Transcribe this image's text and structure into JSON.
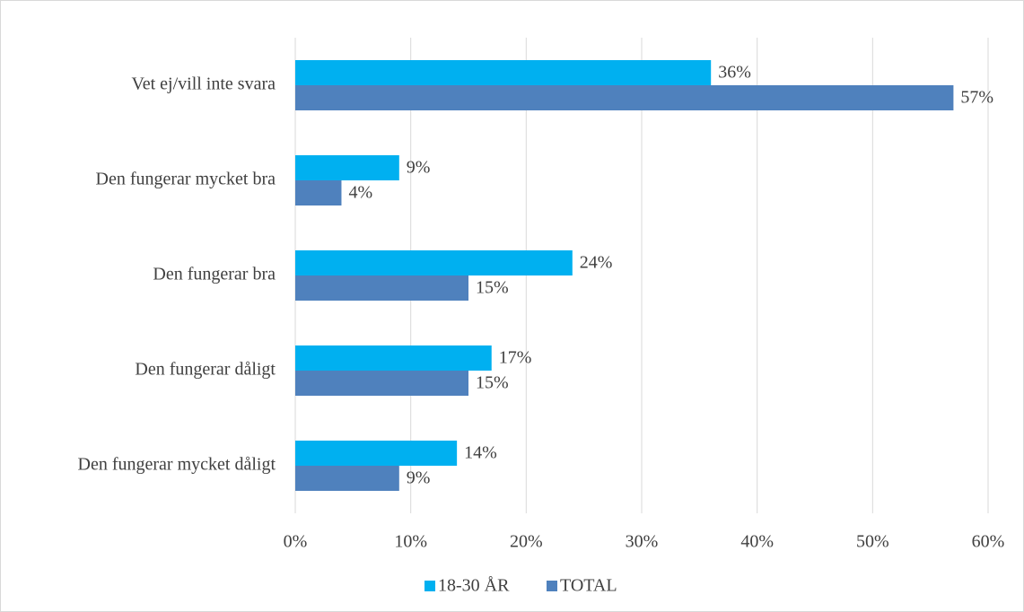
{
  "chart_data": {
    "type": "bar",
    "orientation": "horizontal",
    "categories": [
      "Vet ej/vill inte svara",
      "Den fungerar mycket bra",
      "Den fungerar bra",
      "Den fungerar dåligt",
      "Den fungerar mycket dåligt"
    ],
    "series": [
      {
        "name": "18-30 ÅR",
        "color": "#00b0f0",
        "values": [
          36,
          9,
          24,
          17,
          14
        ],
        "value_labels": [
          "36%",
          "9%",
          "24%",
          "17%",
          "14%"
        ]
      },
      {
        "name": "TOTAL",
        "color": "#4f81bd",
        "values": [
          57,
          4,
          15,
          15,
          9
        ],
        "value_labels": [
          "57%",
          "4%",
          "15%",
          "15%",
          "9%"
        ]
      }
    ],
    "xlim": [
      0,
      60
    ],
    "xticks": [
      {
        "value": 0,
        "label": "0%"
      },
      {
        "value": 10,
        "label": "10%"
      },
      {
        "value": 20,
        "label": "20%"
      },
      {
        "value": 30,
        "label": "30%"
      },
      {
        "value": 40,
        "label": "40%"
      },
      {
        "value": 50,
        "label": "50%"
      },
      {
        "value": 60,
        "label": "60%"
      }
    ],
    "grid": true,
    "legend": "bottom"
  }
}
